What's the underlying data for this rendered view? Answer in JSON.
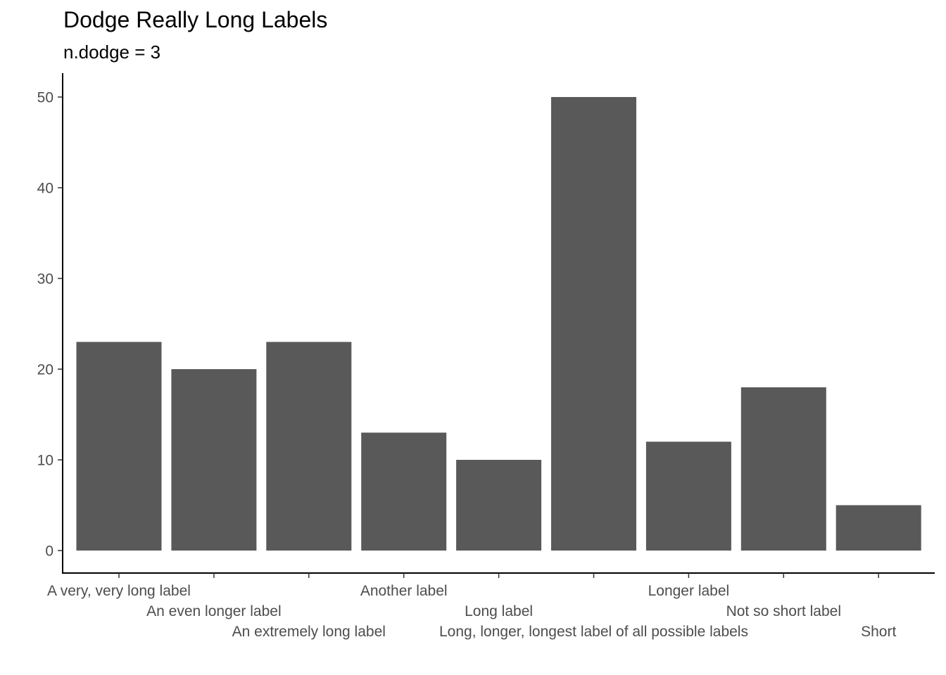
{
  "chart_data": {
    "type": "bar",
    "title": "Dodge Really Long Labels",
    "subtitle": "n.dodge = 3",
    "xlabel": "",
    "ylabel": "",
    "categories": [
      "A very, very long label",
      "An even longer label",
      "An extremely long label",
      "Another label",
      "Long label",
      "Long, longer, longest label of all possible labels",
      "Longer label",
      "Not so short label",
      "Short"
    ],
    "values": [
      23,
      20,
      23,
      13,
      10,
      50,
      12,
      18,
      5
    ],
    "ylim": [
      0,
      50
    ],
    "yticks": [
      0,
      10,
      20,
      30,
      40,
      50
    ],
    "label_dodge_rows": 3,
    "grid": false,
    "legend": "none",
    "bar_color": "#595959"
  }
}
